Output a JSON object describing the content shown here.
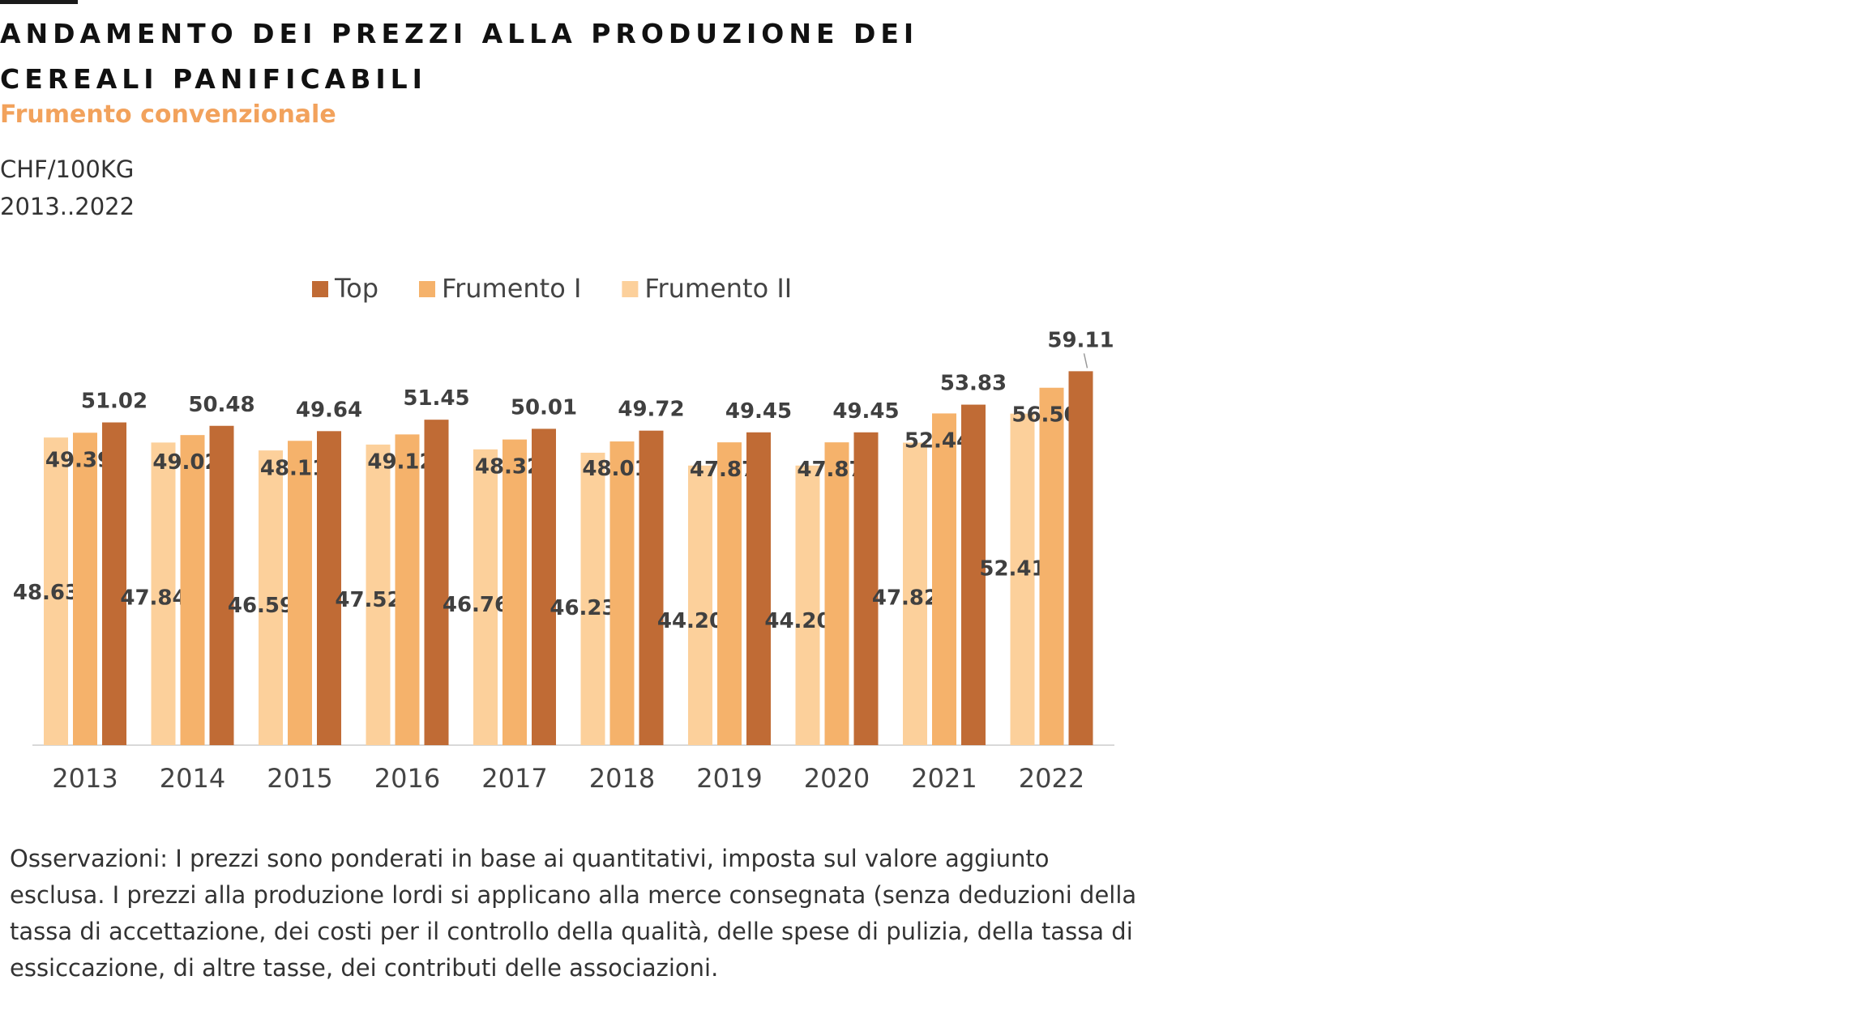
{
  "header": {
    "title": "ANDAMENTO DEI PREZZI ALLA PRODUZIONE DEI CEREALI PANIFICABILI",
    "subtitle": "Frumento convenzionale",
    "unit": "CHF/100KG",
    "period": "2013..2022"
  },
  "notes": "Osservazioni: I prezzi sono ponderati in base ai quantitativi, imposta sul valore aggiunto esclusa. I prezzi alla produzione lordi si applicano alla merce consegnata (senza deduzioni della tassa di accettazione, dei costi per il controllo della qualità, delle spese di pulizia, della tassa di essiccazione, di altre tasse, dei contributi delle associazioni.",
  "colors": {
    "top": "#c06b35",
    "frumento_i": "#f5b26b",
    "frumento_ii": "#fcd09b",
    "axis": "#d9d9d9",
    "label": "#404040"
  },
  "chart_data": {
    "type": "bar",
    "categories": [
      "2013",
      "2014",
      "2015",
      "2016",
      "2017",
      "2018",
      "2019",
      "2020",
      "2021",
      "2022"
    ],
    "series": [
      {
        "name": "Top",
        "values": [
          51.02,
          50.48,
          49.64,
          51.45,
          50.01,
          49.72,
          49.45,
          49.45,
          53.83,
          59.11
        ]
      },
      {
        "name": "Frumento I",
        "values": [
          49.39,
          49.02,
          48.11,
          49.12,
          48.32,
          48.01,
          47.87,
          47.87,
          52.44,
          56.5
        ]
      },
      {
        "name": "Frumento II",
        "values": [
          48.63,
          47.84,
          46.59,
          47.52,
          46.76,
          46.23,
          44.2,
          44.2,
          47.82,
          52.41
        ]
      }
    ],
    "legend_order": [
      "Top",
      "Frumento I",
      "Frumento II"
    ],
    "legend_position": "top",
    "grid": false
  }
}
